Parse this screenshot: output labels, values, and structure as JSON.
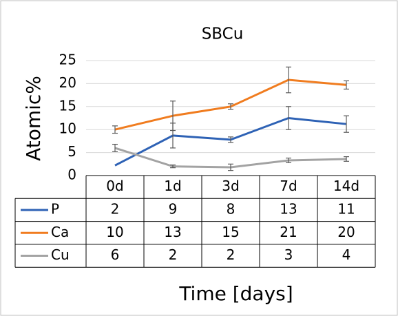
{
  "chart_data": {
    "type": "line",
    "title": "SBCu",
    "x_label": "Time [days]",
    "y_label": "Atomic%",
    "categories": [
      "0d",
      "1d",
      "3d",
      "7d",
      "14d"
    ],
    "series": [
      {
        "name": "P",
        "color": "#2e62b5",
        "values": [
          2.2,
          8.7,
          7.8,
          12.5,
          11.2
        ],
        "value_labels": [
          "2",
          "9",
          "8",
          "13",
          "11"
        ],
        "errors": [
          0,
          2.7,
          0.6,
          2.5,
          1.8
        ]
      },
      {
        "name": "Ca",
        "color": "#f07c1f",
        "values": [
          10,
          13,
          15,
          20.8,
          19.7
        ],
        "value_labels": [
          "10",
          "13",
          "15",
          "21",
          "20"
        ],
        "errors": [
          0.8,
          3.2,
          0.6,
          2.8,
          0.9
        ]
      },
      {
        "name": "Cu",
        "color": "#a3a3a3",
        "values": [
          6,
          2.0,
          1.8,
          3.3,
          3.6
        ],
        "value_labels": [
          "6",
          "2",
          "2",
          "3",
          "4"
        ],
        "errors": [
          0.8,
          0.3,
          0.7,
          0.5,
          0.5
        ]
      }
    ],
    "ylim": [
      0,
      25
    ],
    "yticks": [
      0,
      5,
      10,
      15,
      20,
      25
    ],
    "grid": true
  }
}
